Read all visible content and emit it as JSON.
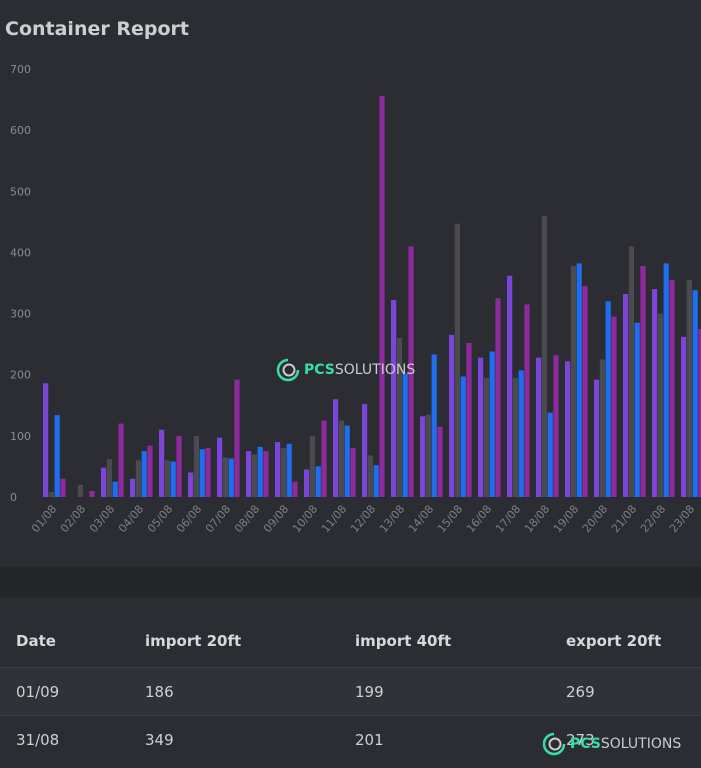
{
  "report": {
    "title": "Container Report"
  },
  "logo": {
    "part1": "PCS",
    "part2": "SOLUTIONS"
  },
  "chart_data": {
    "type": "bar",
    "ylim": [
      0,
      700
    ],
    "yticks": [
      0,
      100,
      200,
      300,
      400,
      500,
      600,
      700
    ],
    "categories": [
      "01/08",
      "02/08",
      "03/08",
      "04/08",
      "05/08",
      "06/08",
      "07/08",
      "08/08",
      "09/08",
      "10/08",
      "11/08",
      "12/08",
      "13/08",
      "14/08",
      "15/08",
      "16/08",
      "17/08",
      "18/08",
      "19/08",
      "20/08",
      "21/08",
      "22/08",
      "23/08"
    ],
    "series": [
      {
        "color": "#7b45d9",
        "values": [
          186,
          0,
          48,
          30,
          110,
          40,
          97,
          75,
          90,
          45,
          160,
          152,
          322,
          132,
          265,
          228,
          362,
          228,
          222,
          192,
          332,
          340,
          262
        ]
      },
      {
        "color": "#4a4a4f",
        "values": [
          8,
          20,
          62,
          60,
          60,
          100,
          65,
          70,
          80,
          100,
          125,
          68,
          260,
          135,
          447,
          195,
          195,
          460,
          378,
          225,
          410,
          300,
          355
        ]
      },
      {
        "color": "#1f6ef0",
        "values": [
          134,
          0,
          25,
          75,
          58,
          78,
          63,
          82,
          87,
          50,
          117,
          52,
          202,
          233,
          197,
          238,
          207,
          138,
          382,
          320,
          285,
          382,
          338
        ]
      },
      {
        "color": "#8e2a9e",
        "values": [
          30,
          10,
          120,
          84,
          100,
          80,
          192,
          75,
          25,
          125,
          80,
          656,
          410,
          115,
          252,
          325,
          315,
          232,
          345,
          295,
          378,
          355,
          275
        ]
      }
    ]
  },
  "table": {
    "headers": [
      "Date",
      "import 20ft",
      "import 40ft",
      "export 20ft"
    ],
    "rows": [
      [
        "01/09",
        "186",
        "199",
        "269"
      ],
      [
        "31/08",
        "349",
        "201",
        "273"
      ]
    ]
  }
}
